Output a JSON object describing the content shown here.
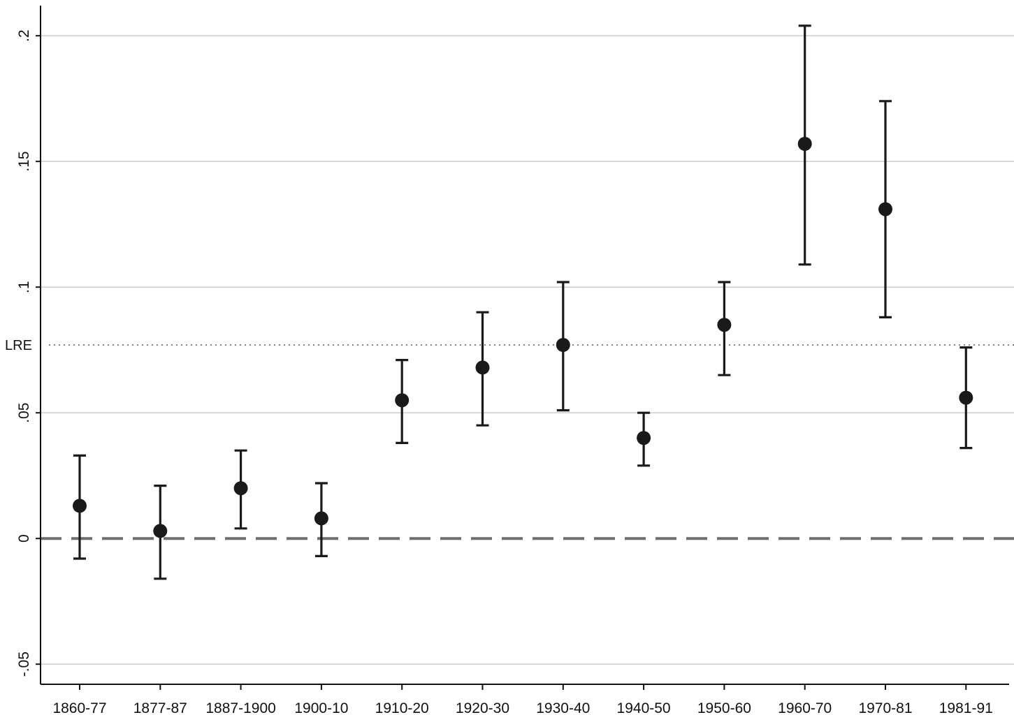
{
  "chart_data": {
    "type": "scatter",
    "subtype": "point-estimates-with-confidence-intervals",
    "title": "",
    "xlabel": "",
    "ylabel": "",
    "categories": [
      "1860-77",
      "1877-87",
      "1887-1900",
      "1900-10",
      "1910-20",
      "1920-30",
      "1930-40",
      "1940-50",
      "1950-60",
      "1960-70",
      "1970-81",
      "1981-91"
    ],
    "series": [
      {
        "estimate": [
          0.013,
          0.003,
          0.02,
          0.008,
          0.055,
          0.068,
          0.077,
          0.04,
          0.085,
          0.157,
          0.131,
          0.056
        ],
        "ci_low": [
          -0.008,
          -0.016,
          0.004,
          -0.007,
          0.038,
          0.045,
          0.051,
          0.029,
          0.065,
          0.109,
          0.088,
          0.036
        ],
        "ci_high": [
          0.033,
          0.021,
          0.035,
          0.022,
          0.071,
          0.09,
          0.102,
          0.05,
          0.102,
          0.204,
          0.174,
          0.076
        ]
      }
    ],
    "ylim": [
      -0.058,
      0.212
    ],
    "yticks": [
      -0.05,
      0,
      0.05,
      0.1,
      0.15,
      0.2
    ],
    "ytick_labels": [
      "-.05",
      "0",
      ".05",
      ".1",
      ".15",
      ".2"
    ],
    "grid": "horizontal",
    "reference_lines": [
      {
        "label": "",
        "value": 0,
        "style": "dashed",
        "color": "#6e6e6e"
      },
      {
        "label": "LRE",
        "value": 0.077,
        "style": "dotted",
        "color": "#555555"
      }
    ],
    "marker_color": "#1a1a1a",
    "grid_color": "#c8c8c8"
  }
}
